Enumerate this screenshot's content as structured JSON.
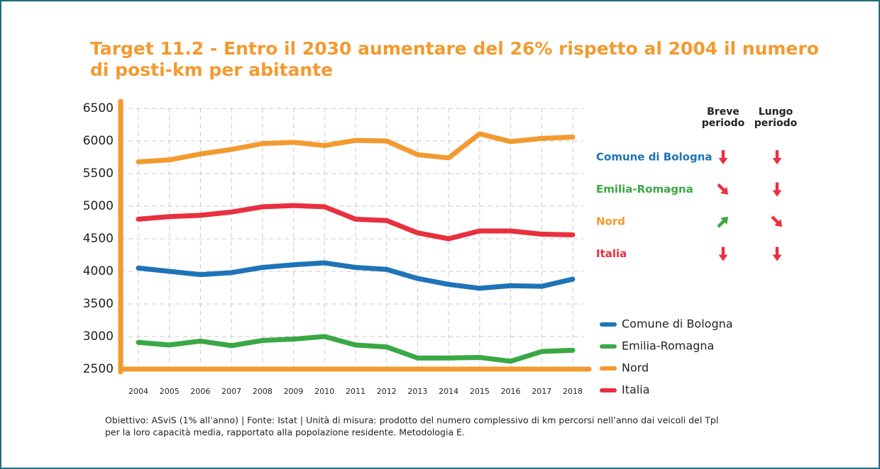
{
  "chart_data": {
    "type": "line",
    "title": "Target 11.2 - Entro il 2030 aumentare del 26% rispetto al 2004 il numero di posti-km per abitante",
    "categories": [
      "2004",
      "2005",
      "2006",
      "2007",
      "2008",
      "2009",
      "2010",
      "2011",
      "2012",
      "2013",
      "2014",
      "2015",
      "2016",
      "2017",
      "2018"
    ],
    "series": [
      {
        "name": "Comune di Bologna",
        "color": "#1f73b7",
        "values": [
          4050,
          4000,
          3950,
          3980,
          4060,
          4100,
          4130,
          4060,
          4030,
          3890,
          3800,
          3740,
          3780,
          3770,
          3880
        ],
        "short_term": "down",
        "long_term": "down"
      },
      {
        "name": "Emilia-Romagna",
        "color": "#3aa845",
        "values": [
          2910,
          2870,
          2930,
          2860,
          2940,
          2960,
          3000,
          2870,
          2840,
          2670,
          2670,
          2680,
          2620,
          2770,
          2790
        ],
        "short_term": "down-right",
        "long_term": "down"
      },
      {
        "name": "Nord",
        "color": "#f39a2f",
        "values": [
          5680,
          5710,
          5800,
          5870,
          5960,
          5980,
          5930,
          6010,
          6000,
          5790,
          5740,
          6110,
          5990,
          6040,
          6060
        ],
        "short_term": "up-right",
        "long_term": "down-right"
      },
      {
        "name": "Italia",
        "color": "#e8303f",
        "values": [
          4800,
          4840,
          4860,
          4910,
          4990,
          5010,
          4990,
          4800,
          4780,
          4590,
          4500,
          4620,
          4620,
          4570,
          4560
        ],
        "short_term": "down",
        "long_term": "down"
      }
    ],
    "ylim": [
      2500,
      6500
    ],
    "yticks": [
      2500,
      3000,
      3500,
      4000,
      4500,
      5000,
      5500,
      6000,
      6500
    ],
    "grid": true,
    "axis_color": "#f39a2f",
    "trend_headers": [
      "Breve periodo",
      "Lungo periodo"
    ],
    "trend_colors": {
      "down": "#e8303f",
      "down-right": "#e8303f",
      "up-right": "#3aa845"
    }
  },
  "footer": [
    "Obiettivo: ASviS (1% all’anno) | Fonte: Istat | Unità di misura: prodotto del numero complessivo di km percorsi nell’anno dai veicoli del Tpl",
    "per la loro capacità media, rapportato alla popolazione residente. Metodologia E."
  ]
}
